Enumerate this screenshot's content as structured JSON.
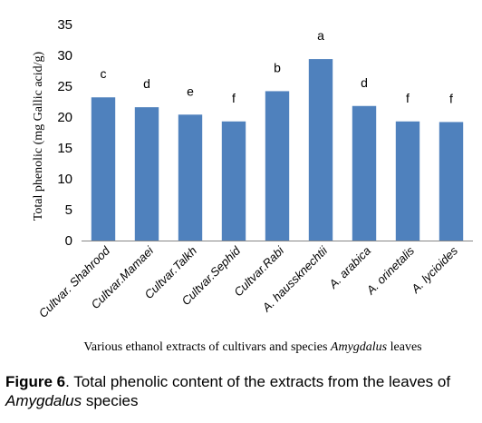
{
  "chart_data": {
    "type": "bar",
    "ylabel": "Total phenolic (mg Gallic acid/g)",
    "xlabel_prefix": "Various  ethanol  extracts of cultivars and species ",
    "xlabel_italic": "Amygdalus",
    "xlabel_suffix": " leaves",
    "ylim": [
      0,
      35
    ],
    "yticks": [
      0,
      5,
      10,
      15,
      20,
      25,
      30,
      35
    ],
    "categories": [
      "Cultvar. Shahrood",
      "Cultvar.Mamaei",
      "Cultvar.Talkh",
      "Cultvar.Sephid",
      "Cultvar.Rabi",
      "A. haussknechtii",
      "A. arabica",
      "A. orinetalis",
      "A. lycioides"
    ],
    "values": [
      23.2,
      21.6,
      20.4,
      19.3,
      24.2,
      29.4,
      21.8,
      19.3,
      19.2
    ],
    "significance_letters": [
      "c",
      "d",
      "e",
      "f",
      "b",
      "a",
      "d",
      "f",
      "f"
    ],
    "bar_color": "#4f81bd",
    "grid": false
  },
  "caption": {
    "label": "Figure 6",
    "text_before": ". Total phenolic content of the extracts from the leaves of ",
    "italic": "Amygdalus",
    "text_after": " species"
  }
}
